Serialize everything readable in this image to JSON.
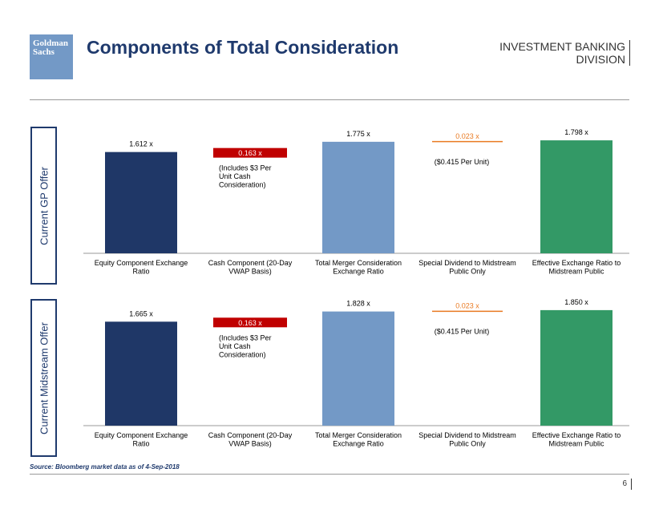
{
  "header": {
    "logo_line1": "Goldman",
    "logo_line2": "Sachs",
    "title": "Components of Total Consideration",
    "division_line1": "INVESTMENT BANKING",
    "division_line2": "DIVISION"
  },
  "footer": {
    "source": "Source: Bloomberg market data as of 4-Sep-2018",
    "page_number": "6"
  },
  "colors": {
    "equity": "#1f3767",
    "cash": "#c00000",
    "total": "#7399c6",
    "special": "#e97a22",
    "effective": "#339966",
    "axis": "#999999"
  },
  "chart_data": [
    {
      "type": "bar",
      "panel_label": "Current GP Offer",
      "categories": [
        "Equity Component Exchange Ratio",
        "Cash Component (20-Day VWAP Basis)",
        "Total Merger Consideration Exchange Ratio",
        "Special Dividend to Midstream Public Only",
        "Effective Exchange Ratio to Midstream Public"
      ],
      "category_lines": [
        [
          "Equity Component Exchange",
          "Ratio"
        ],
        [
          "Cash Component (20-Day",
          "VWAP Basis)"
        ],
        [
          "Total Merger Consideration",
          "Exchange Ratio"
        ],
        [
          "Special Dividend to Midstream",
          "Public Only"
        ],
        [
          "Effective Exchange Ratio to",
          "Midstream Public"
        ]
      ],
      "values": [
        1.612,
        0.163,
        1.775,
        0.023,
        1.798
      ],
      "bar_kinds": [
        "full",
        "float",
        "full",
        "float",
        "full"
      ],
      "data_labels": [
        "1.612 x",
        "0.163 x",
        "1.775 x",
        "0.023 x",
        "1.798 x"
      ],
      "annotations": {
        "cash_note": [
          "(Includes $3 Per",
          "Unit Cash",
          "Consideration)"
        ],
        "special_note": "($0.415 Per Unit)"
      },
      "ylim": [
        0,
        1.85
      ]
    },
    {
      "type": "bar",
      "panel_label": "Current Midstream Offer",
      "categories": [
        "Equity Component Exchange Ratio",
        "Cash Component (20-Day VWAP Basis)",
        "Total Merger Consideration Exchange Ratio",
        "Special Dividend to Midstream Public Only",
        "Effective Exchange Ratio to Midstream Public"
      ],
      "category_lines": [
        [
          "Equity Component Exchange",
          "Ratio"
        ],
        [
          "Cash Component (20-Day",
          "VWAP Basis)"
        ],
        [
          "Total Merger Consideration",
          "Exchange Ratio"
        ],
        [
          "Special Dividend to Midstream",
          "Public Only"
        ],
        [
          "Effective Exchange Ratio to",
          "Midstream Public"
        ]
      ],
      "values": [
        1.665,
        0.163,
        1.828,
        0.023,
        1.85
      ],
      "bar_kinds": [
        "full",
        "float",
        "full",
        "float",
        "full"
      ],
      "data_labels": [
        "1.665 x",
        "0.163 x",
        "1.828 x",
        "0.023 x",
        "1.850 x"
      ],
      "annotations": {
        "cash_note": [
          "(Includes $3 Per",
          "Unit Cash",
          "Consideration)"
        ],
        "special_note": "($0.415 Per Unit)"
      },
      "ylim": [
        0,
        1.9
      ]
    }
  ]
}
